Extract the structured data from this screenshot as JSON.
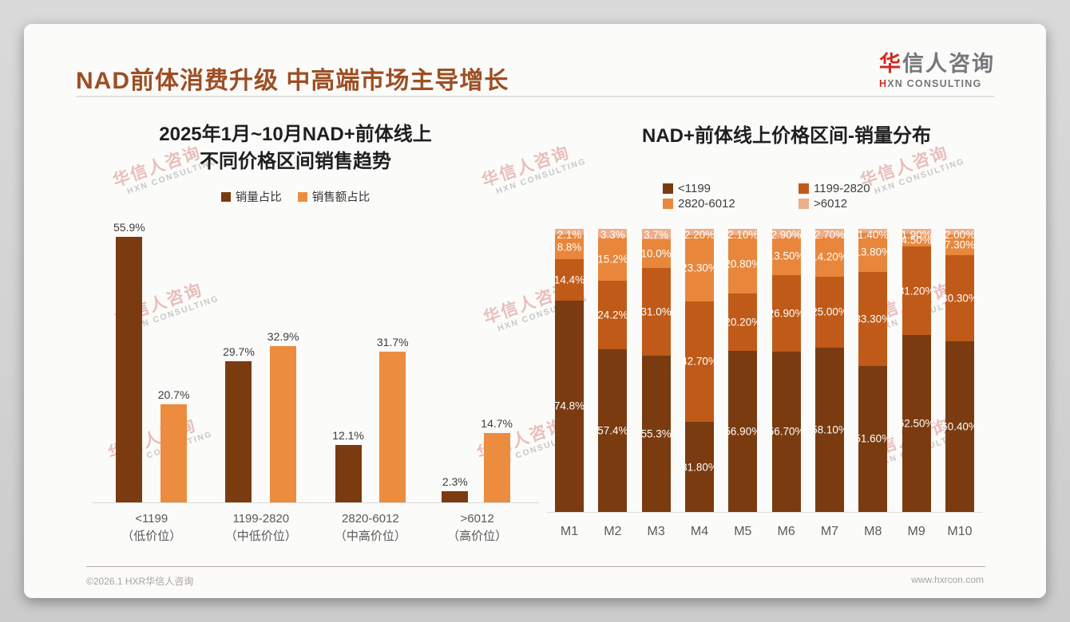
{
  "slide": {
    "title": "NAD前体消费升级 中高端市场主导增长",
    "logo": {
      "cn_red": "华",
      "cn_gray": "信人咨询",
      "en_red": "H",
      "en_gray": "XN CONSULTING"
    },
    "watermark": {
      "cn": "华信人咨询",
      "en": "HXN CONSULTING"
    },
    "footer": {
      "left": "©2026.1 HXR华信人咨询",
      "right": "www.hxrcon.com"
    }
  },
  "chart_data": [
    {
      "type": "bar",
      "stacked": false,
      "title": "2025年1月~10月NAD+前体线上不同价格区间销售趋势",
      "title_lines": [
        "2025年1月~10月NAD+前体线上",
        "不同价格区间销售趋势"
      ],
      "categories": [
        [
          "<1199",
          "（低价位）"
        ],
        [
          "1199-2820",
          "（中低价位）"
        ],
        [
          "2820-6012",
          "（中高价位）"
        ],
        [
          ">6012",
          "（高价位）"
        ]
      ],
      "series": [
        {
          "name": "销量占比",
          "color": "#7a3b10",
          "values": [
            55.9,
            29.7,
            12.1,
            2.3
          ],
          "labels": [
            "55.9%",
            "29.7%",
            "12.1%",
            "2.3%"
          ]
        },
        {
          "name": "销售额占比",
          "color": "#ec8c3f",
          "values": [
            20.7,
            32.9,
            31.7,
            14.7
          ],
          "labels": [
            "20.7%",
            "32.9%",
            "31.7%",
            "14.7%"
          ]
        }
      ],
      "unit": "%",
      "ylim": [
        0,
        60
      ],
      "grid": false,
      "legend_position": "top"
    },
    {
      "type": "bar",
      "stacked": true,
      "title": "NAD+前体线上价格区间-销量分布",
      "categories": [
        "M1",
        "M2",
        "M3",
        "M4",
        "M5",
        "M6",
        "M7",
        "M8",
        "M9",
        "M10"
      ],
      "series": [
        {
          "name": "<1199",
          "color": "#7a3b10",
          "values": [
            74.8,
            57.4,
            55.3,
            31.8,
            56.9,
            56.7,
            58.1,
            51.6,
            62.5,
            60.4
          ],
          "labels": [
            "74.8%",
            "57.4%",
            "55.3%",
            "31.80%",
            "56.90%",
            "56.70%",
            "58.10%",
            "51.60%",
            "62.50%",
            "60.40%"
          ]
        },
        {
          "name": "1199-2820",
          "color": "#c05a18",
          "values": [
            14.4,
            24.2,
            31.0,
            42.7,
            20.2,
            26.9,
            25.0,
            33.3,
            31.2,
            30.3
          ],
          "labels": [
            "14.4%",
            "24.2%",
            "31.0%",
            "42.70%",
            "20.20%",
            "26.90%",
            "25.00%",
            "33.30%",
            "31.20%",
            "30.30%"
          ]
        },
        {
          "name": "2820-6012",
          "color": "#e8873c",
          "values": [
            8.8,
            15.2,
            10.0,
            23.3,
            20.8,
            13.5,
            14.2,
            13.8,
            4.5,
            7.3
          ],
          "labels": [
            "8.8%",
            "15.2%",
            "10.0%",
            "23.30%",
            "20.80%",
            "13.50%",
            "14.20%",
            "13.80%",
            "4.50%",
            "7.30%"
          ]
        },
        {
          "name": ">6012",
          "color": "#edae89",
          "values": [
            2.1,
            3.3,
            3.7,
            2.2,
            2.1,
            2.9,
            2.7,
            1.4,
            1.9,
            2.0
          ],
          "labels": [
            "2.1%",
            "3.3%",
            "3.7%",
            "2.20%",
            "2.10%",
            "2.90%",
            "2.70%",
            "1.40%",
            "1.90%",
            "2.00%"
          ]
        }
      ],
      "unit": "%",
      "ylim": [
        0,
        100
      ],
      "grid": false,
      "legend_position": "top"
    }
  ]
}
